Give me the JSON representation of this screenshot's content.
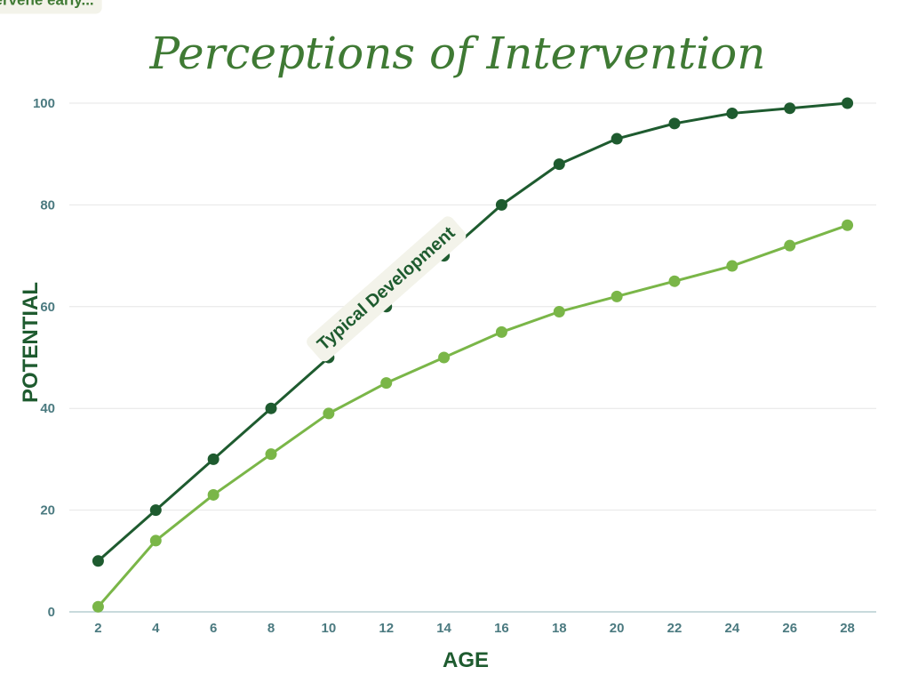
{
  "chart_data": {
    "type": "line",
    "title": "Perceptions of Intervention",
    "xlabel": "AGE",
    "ylabel": "POTENTIAL",
    "x": [
      2,
      4,
      6,
      8,
      10,
      12,
      14,
      16,
      18,
      20,
      22,
      24,
      26,
      28
    ],
    "ylim": [
      0,
      100
    ],
    "yticks": [
      0,
      20,
      40,
      60,
      80,
      100
    ],
    "grid": true,
    "series": [
      {
        "values": [
          10,
          20,
          30,
          40,
          50,
          60,
          70,
          80,
          88,
          93,
          96,
          98,
          99,
          100
        ],
        "color": "#1e5b2f"
      },
      {
        "values": [
          1,
          14,
          23,
          31,
          39,
          45,
          50,
          55,
          59,
          62,
          65,
          68,
          72,
          76
        ],
        "color": "#7ab648"
      }
    ],
    "annotations": [
      {
        "text": "Typical Development",
        "series": 0,
        "at_x": 12
      },
      {
        "text": "When we intervene early...",
        "series": 1,
        "at_x": 15
      }
    ],
    "colors": {
      "title": "#3f7a34",
      "tick": "#4b7a80",
      "axis_title": "#1e5b2f",
      "grid": "#e6e6e6",
      "axis_line": "#b6cdd0",
      "label_box": "#f3f3ea"
    }
  }
}
